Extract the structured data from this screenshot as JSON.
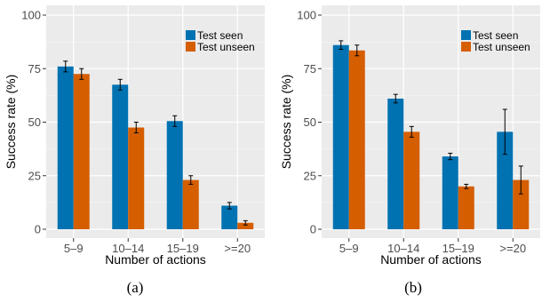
{
  "chart_data": [
    {
      "type": "bar",
      "categories": [
        "5–9",
        "10–14",
        "15–19",
        ">=20"
      ],
      "series": [
        {
          "name": "Test seen",
          "values": [
            76,
            67.5,
            50.5,
            11
          ],
          "errors": [
            2.5,
            2.5,
            2.5,
            1.5
          ]
        },
        {
          "name": "Test unseen",
          "values": [
            72.5,
            47.5,
            23,
            3
          ],
          "errors": [
            2.5,
            2.5,
            2,
            1
          ]
        }
      ],
      "xlabel": "Number of actions",
      "ylabel": "Success rate (%)",
      "ylim": [
        0,
        100
      ],
      "yticks": [
        0,
        25,
        50,
        75,
        100
      ],
      "grid": true,
      "legend_position": "top-right",
      "colors": [
        "#0072B2",
        "#D55E00"
      ],
      "caption": "(a)"
    },
    {
      "type": "bar",
      "categories": [
        "5–9",
        "10–14",
        "15–19",
        ">=20"
      ],
      "series": [
        {
          "name": "Test seen",
          "values": [
            86,
            61,
            34,
            45.5
          ],
          "errors": [
            2,
            2,
            1.5,
            10.5
          ]
        },
        {
          "name": "Test unseen",
          "values": [
            83.5,
            45.5,
            20,
            23
          ],
          "errors": [
            2.5,
            2.5,
            1,
            6.5
          ]
        }
      ],
      "xlabel": "Number of actions",
      "ylabel": "Success rate (%)",
      "ylim": [
        0,
        100
      ],
      "yticks": [
        0,
        25,
        50,
        75,
        100
      ],
      "grid": true,
      "legend_position": "top-right",
      "colors": [
        "#0072B2",
        "#D55E00"
      ],
      "caption": "(b)"
    }
  ]
}
